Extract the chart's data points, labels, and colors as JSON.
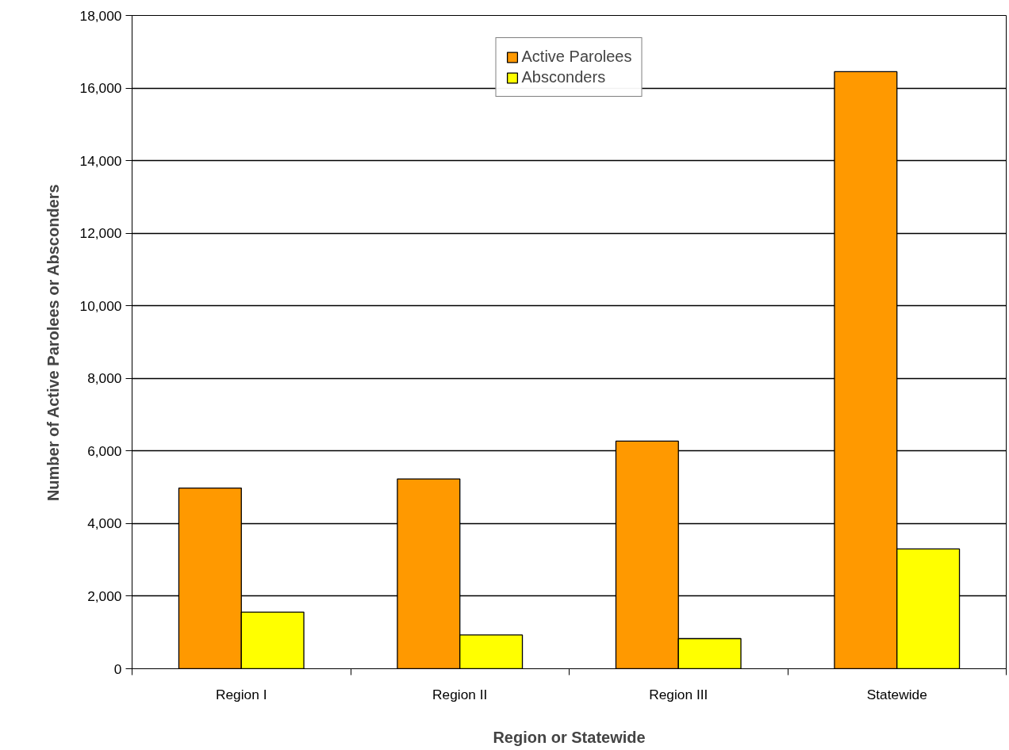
{
  "chart_data": {
    "type": "bar",
    "xlabel": "Region or Statewide",
    "ylabel": "Number of Active Parolees or Absconders",
    "categories": [
      "Region I",
      "Region II",
      "Region III",
      "Statewide"
    ],
    "series": [
      {
        "name": "Active Parolees",
        "color": "#ff9900",
        "values": [
          4980,
          5230,
          6270,
          16450
        ]
      },
      {
        "name": "Absconders",
        "color": "#ffff00",
        "values": [
          1560,
          930,
          830,
          3300
        ]
      }
    ],
    "ylim": [
      0,
      18000
    ],
    "yticks": [
      {
        "value": 0,
        "label": "0"
      },
      {
        "value": 2000,
        "label": "2,000"
      },
      {
        "value": 4000,
        "label": "4,000"
      },
      {
        "value": 6000,
        "label": "6,000"
      },
      {
        "value": 8000,
        "label": "8,000"
      },
      {
        "value": 10000,
        "label": "10,000"
      },
      {
        "value": 12000,
        "label": "12,000"
      },
      {
        "value": 14000,
        "label": "14,000"
      },
      {
        "value": 16000,
        "label": "16,000"
      },
      {
        "value": 18000,
        "label": "18,000"
      }
    ],
    "grid": "y",
    "legend": "top"
  }
}
